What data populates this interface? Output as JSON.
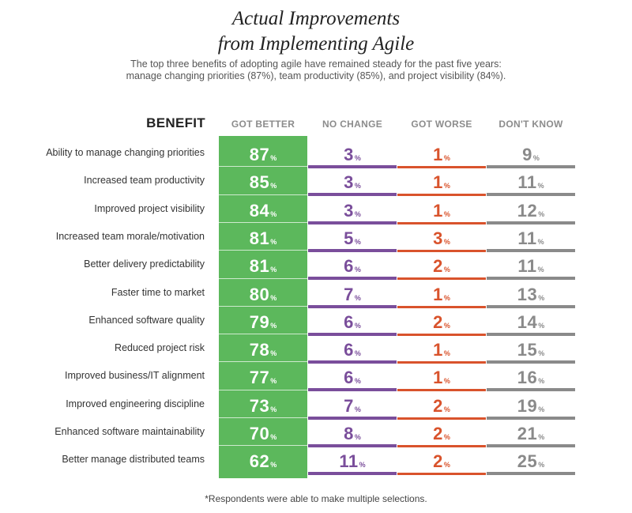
{
  "title_line1": "Actual Improvements",
  "title_line2": "from Implementing Agile",
  "subtitle": "The top three benefits of adopting agile have remained steady for the past five years: manage changing priorities (87%), team productivity (85%), and project visibility (84%).",
  "footnote": "*Respondents were able to make multiple selections.",
  "colors": {
    "got_better": "#5cb85c",
    "no_change": "#7a4e9b",
    "got_worse": "#d9532c",
    "dont_know": "#8a8a8a"
  },
  "chart_data": {
    "type": "table",
    "header_benefit": "BENEFIT",
    "columns": [
      "GOT BETTER",
      "NO CHANGE",
      "GOT WORSE",
      "DON'T KNOW"
    ],
    "unit": "%",
    "rows": [
      {
        "benefit": "Ability to manage changing priorities",
        "values": [
          87,
          3,
          1,
          9
        ]
      },
      {
        "benefit": "Increased team productivity",
        "values": [
          85,
          3,
          1,
          11
        ]
      },
      {
        "benefit": "Improved project visibility",
        "values": [
          84,
          3,
          1,
          12
        ]
      },
      {
        "benefit": "Increased team morale/motivation",
        "values": [
          81,
          5,
          3,
          11
        ]
      },
      {
        "benefit": "Better delivery predictability",
        "values": [
          81,
          6,
          2,
          11
        ]
      },
      {
        "benefit": "Faster time to market",
        "values": [
          80,
          7,
          1,
          13
        ]
      },
      {
        "benefit": "Enhanced software quality",
        "values": [
          79,
          6,
          2,
          14
        ]
      },
      {
        "benefit": "Reduced project risk",
        "values": [
          78,
          6,
          1,
          15
        ]
      },
      {
        "benefit": "Improved business/IT alignment",
        "values": [
          77,
          6,
          1,
          16
        ]
      },
      {
        "benefit": "Improved engineering discipline",
        "values": [
          73,
          7,
          2,
          19
        ]
      },
      {
        "benefit": "Enhanced software maintainability",
        "values": [
          70,
          8,
          2,
          21
        ]
      },
      {
        "benefit": "Better manage distributed teams",
        "values": [
          62,
          11,
          2,
          25
        ]
      }
    ]
  }
}
